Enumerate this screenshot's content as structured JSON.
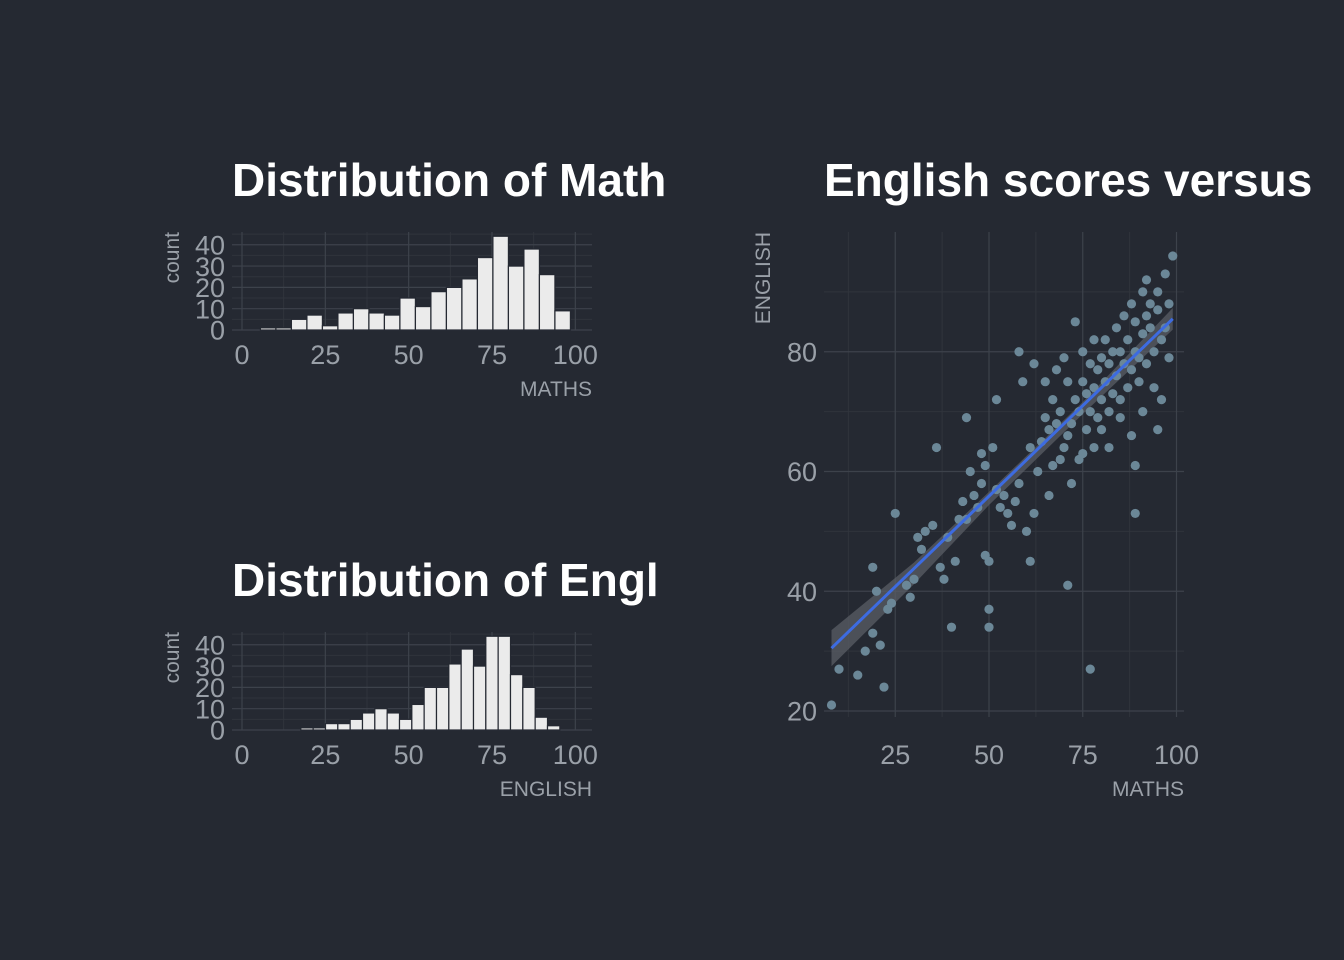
{
  "theme": {
    "background": "#252932",
    "grid_major": "#3d424b",
    "grid_minor": "#30343c",
    "bar_fill": "#ebebeb",
    "bar_edge": "#252932",
    "point_color": "#6b8797",
    "line_color": "#3d6be0",
    "ribbon_color": "#5a5e66"
  },
  "chart_data": [
    {
      "type": "bar",
      "title": "Distribution of Math",
      "xlabel": "MATHS",
      "ylabel": "count",
      "xlim": [
        -3,
        105
      ],
      "ylim": [
        0,
        46
      ],
      "xticks": [
        0,
        25,
        50,
        75,
        100
      ],
      "yticks": [
        0,
        10,
        20,
        30,
        40
      ],
      "grid": true,
      "bin_width": 4.65,
      "bin_centers": [
        3.2,
        7.85,
        12.5,
        17.15,
        21.8,
        26.45,
        31.1,
        35.75,
        40.4,
        45.05,
        49.7,
        54.35,
        59.0,
        63.65,
        68.3,
        72.95,
        77.6,
        82.25,
        86.9,
        91.55,
        96.2
      ],
      "values": [
        0,
        1,
        1,
        5,
        7,
        2,
        8,
        10,
        8,
        7,
        15,
        11,
        18,
        20,
        24,
        34,
        44,
        30,
        38,
        26,
        9
      ]
    },
    {
      "type": "bar",
      "title": "Distribution of Engl",
      "xlabel": "ENGLISH",
      "ylabel": "count",
      "xlim": [
        -3,
        105
      ],
      "ylim": [
        0,
        46
      ],
      "xticks": [
        0,
        25,
        50,
        75,
        100
      ],
      "yticks": [
        0,
        10,
        20,
        30,
        40
      ],
      "grid": true,
      "bin_width": 3.7,
      "bin_centers": [
        19.5,
        23.2,
        26.9,
        30.6,
        34.3,
        38.0,
        41.7,
        45.4,
        49.1,
        52.8,
        56.5,
        60.2,
        63.9,
        67.6,
        71.3,
        75.0,
        78.7,
        82.4,
        86.1,
        89.8,
        93.5
      ],
      "values": [
        1,
        1,
        3,
        3,
        5,
        8,
        10,
        8,
        5,
        12,
        20,
        20,
        31,
        38,
        30,
        44,
        44,
        26,
        20,
        6,
        2
      ]
    },
    {
      "type": "scatter",
      "title": "English scores versus",
      "xlabel": "MATHS",
      "ylabel": "ENGLISH",
      "xlim": [
        6,
        102
      ],
      "ylim": [
        19,
        100
      ],
      "xticks": [
        25,
        50,
        75,
        100
      ],
      "yticks": [
        20,
        40,
        60,
        80
      ],
      "grid": true,
      "trend_line": {
        "x": [
          8,
          99
        ],
        "y": [
          30.5,
          85.5
        ]
      },
      "confidence_band": {
        "x": [
          8,
          30,
          50,
          75,
          99
        ],
        "upper": [
          33.5,
          44.8,
          56.6,
          71.6,
          87.3
        ],
        "lower": [
          27.5,
          41.2,
          54.4,
          69.6,
          83.7
        ]
      },
      "points": [
        [
          8,
          21
        ],
        [
          10,
          27
        ],
        [
          15,
          26
        ],
        [
          17,
          30
        ],
        [
          19,
          44
        ],
        [
          19,
          33
        ],
        [
          20,
          40
        ],
        [
          21,
          31
        ],
        [
          22,
          24
        ],
        [
          23,
          37
        ],
        [
          24,
          38
        ],
        [
          25,
          53
        ],
        [
          28,
          41
        ],
        [
          29,
          39
        ],
        [
          30,
          42
        ],
        [
          31,
          49
        ],
        [
          32,
          47
        ],
        [
          33,
          50
        ],
        [
          35,
          51
        ],
        [
          36,
          64
        ],
        [
          37,
          44
        ],
        [
          38,
          42
        ],
        [
          39,
          49
        ],
        [
          40,
          34
        ],
        [
          41,
          45
        ],
        [
          42,
          52
        ],
        [
          43,
          55
        ],
        [
          44,
          52
        ],
        [
          44,
          69
        ],
        [
          45,
          60
        ],
        [
          46,
          56
        ],
        [
          47,
          54
        ],
        [
          48,
          58
        ],
        [
          48,
          63
        ],
        [
          49,
          61
        ],
        [
          49,
          46
        ],
        [
          50,
          34
        ],
        [
          50,
          37
        ],
        [
          50,
          45
        ],
        [
          51,
          64
        ],
        [
          52,
          57
        ],
        [
          52,
          72
        ],
        [
          53,
          54
        ],
        [
          54,
          56
        ],
        [
          55,
          53
        ],
        [
          56,
          51
        ],
        [
          57,
          55
        ],
        [
          58,
          58
        ],
        [
          58,
          80
        ],
        [
          59,
          75
        ],
        [
          60,
          50
        ],
        [
          61,
          45
        ],
        [
          61,
          64
        ],
        [
          62,
          53
        ],
        [
          62,
          78
        ],
        [
          63,
          60
        ],
        [
          64,
          65
        ],
        [
          65,
          69
        ],
        [
          65,
          75
        ],
        [
          66,
          67
        ],
        [
          66,
          56
        ],
        [
          67,
          61
        ],
        [
          67,
          72
        ],
        [
          68,
          68
        ],
        [
          68,
          77
        ],
        [
          69,
          62
        ],
        [
          69,
          70
        ],
        [
          70,
          64
        ],
        [
          70,
          79
        ],
        [
          71,
          66
        ],
        [
          71,
          75
        ],
        [
          71,
          41
        ],
        [
          72,
          58
        ],
        [
          72,
          68
        ],
        [
          73,
          72
        ],
        [
          73,
          85
        ],
        [
          74,
          70
        ],
        [
          74,
          62
        ],
        [
          75,
          75
        ],
        [
          75,
          80
        ],
        [
          75,
          63
        ],
        [
          76,
          67
        ],
        [
          76,
          73
        ],
        [
          77,
          78
        ],
        [
          77,
          70
        ],
        [
          77,
          27
        ],
        [
          78,
          74
        ],
        [
          78,
          82
        ],
        [
          78,
          64
        ],
        [
          79,
          69
        ],
        [
          79,
          77
        ],
        [
          80,
          79
        ],
        [
          80,
          72
        ],
        [
          80,
          67
        ],
        [
          81,
          75
        ],
        [
          81,
          82
        ],
        [
          82,
          70
        ],
        [
          82,
          78
        ],
        [
          82,
          64
        ],
        [
          83,
          80
        ],
        [
          83,
          73
        ],
        [
          84,
          76
        ],
        [
          84,
          84
        ],
        [
          85,
          72
        ],
        [
          85,
          69
        ],
        [
          85,
          80
        ],
        [
          86,
          78
        ],
        [
          86,
          86
        ],
        [
          87,
          74
        ],
        [
          87,
          82
        ],
        [
          88,
          77
        ],
        [
          88,
          88
        ],
        [
          88,
          66
        ],
        [
          89,
          80
        ],
        [
          89,
          85
        ],
        [
          89,
          61
        ],
        [
          89,
          53
        ],
        [
          90,
          79
        ],
        [
          90,
          75
        ],
        [
          91,
          83
        ],
        [
          91,
          90
        ],
        [
          91,
          70
        ],
        [
          92,
          86
        ],
        [
          92,
          78
        ],
        [
          92,
          92
        ],
        [
          93,
          84
        ],
        [
          93,
          88
        ],
        [
          94,
          80
        ],
        [
          94,
          74
        ],
        [
          95,
          87
        ],
        [
          95,
          90
        ],
        [
          95,
          67
        ],
        [
          96,
          82
        ],
        [
          96,
          72
        ],
        [
          97,
          84
        ],
        [
          97,
          93
        ],
        [
          98,
          88
        ],
        [
          98,
          79
        ],
        [
          99,
          96
        ]
      ]
    }
  ]
}
